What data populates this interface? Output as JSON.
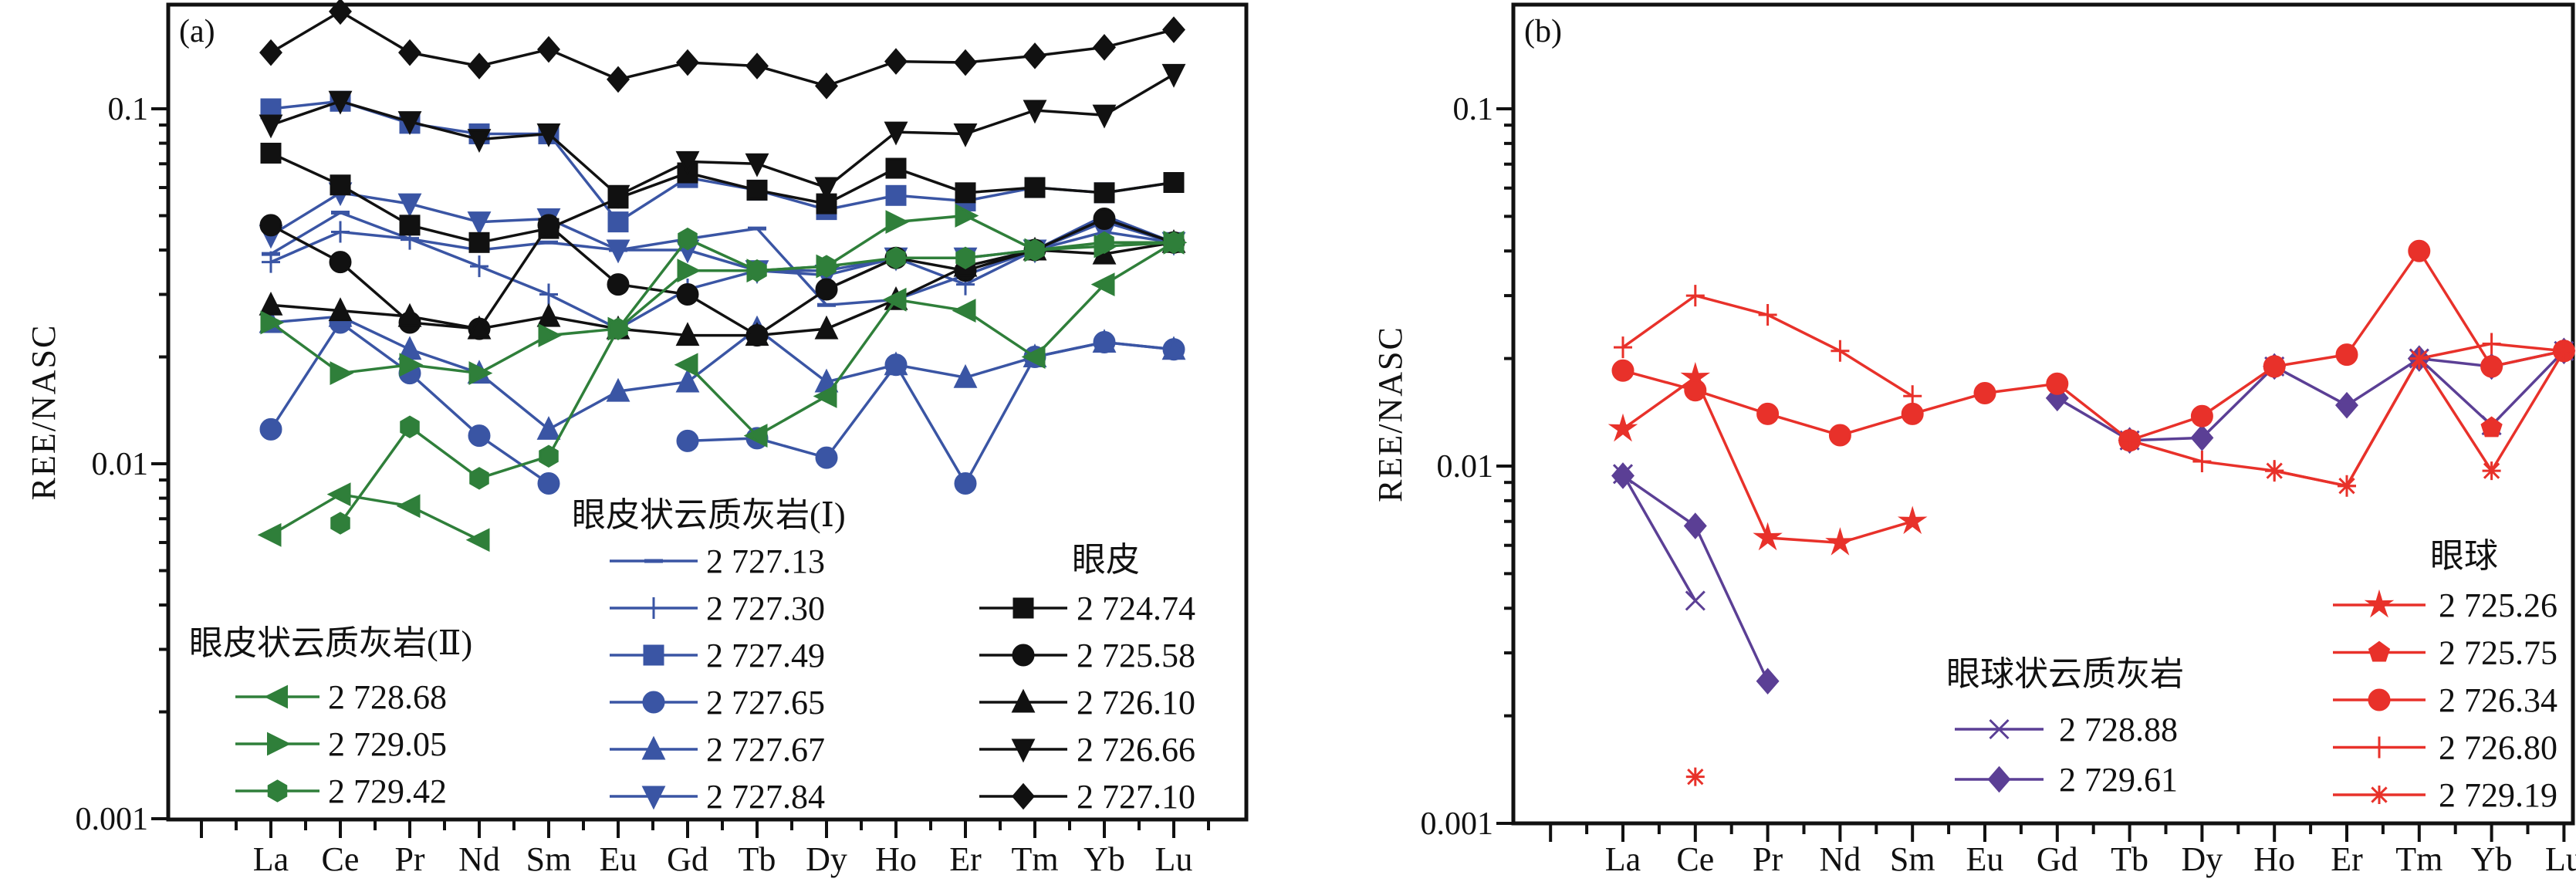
{
  "chart_data": [
    {
      "type": "line",
      "panel_label": "(a)",
      "ylabel": "REE/NASC",
      "yscale": "log",
      "ylim": [
        0.001,
        0.2
      ],
      "ytick_labels": [
        "0.1",
        "0.01",
        "0.001"
      ],
      "ytick_values": [
        0.1,
        0.01,
        0.001
      ],
      "categories": [
        "La",
        "Ce",
        "Pr",
        "Nd",
        "Sm",
        "Eu",
        "Gd",
        "Tb",
        "Dy",
        "Ho",
        "Er",
        "Tm",
        "Yb",
        "Lu"
      ],
      "grid": false,
      "legend_groups": [
        {
          "title": "眼皮状云质灰岩(Ⅰ)",
          "series": [
            {
              "name": "2 727.13",
              "marker": "dash",
              "color": "#3a55a4",
              "values": [
                0.039,
                0.051,
                0.043,
                0.04,
                0.042,
                0.04,
                0.043,
                0.046,
                0.028,
                0.029,
                0.034,
                0.04,
                0.05,
                0.042
              ]
            },
            {
              "name": "2 727.30",
              "marker": "plus",
              "color": "#3a55a4",
              "values": [
                0.037,
                0.045,
                0.043,
                0.036,
                0.03,
                0.024,
                0.031,
                0.035,
                0.035,
                0.038,
                0.032,
                0.04,
                0.048,
                0.042
              ]
            },
            {
              "name": "2 727.49",
              "marker": "square",
              "color": "#3a55a4",
              "values": [
                0.1,
                0.105,
                0.091,
                0.085,
                0.085,
                0.048,
                0.064,
                0.059,
                0.052,
                0.057,
                0.055,
                0.06,
                0.058,
                0.062
              ]
            },
            {
              "name": "2 727.65",
              "marker": "circle",
              "color": "#3a55a4",
              "values": [
                0.0125,
                0.025,
                0.018,
                0.012,
                0.0088,
                null,
                0.0116,
                0.0118,
                0.0104,
                0.019,
                0.0088,
                0.02,
                0.022,
                0.021
              ]
            },
            {
              "name": "2 727.67",
              "marker": "triangle-up",
              "color": "#3a55a4",
              "values": [
                0.025,
                0.026,
                0.021,
                0.018,
                0.0125,
                0.016,
                0.017,
                0.024,
                0.017,
                0.019,
                0.0175,
                0.02,
                0.022,
                0.021
              ]
            },
            {
              "name": "2 727.84",
              "marker": "triangle-down",
              "color": "#3a55a4",
              "values": [
                0.044,
                0.058,
                0.054,
                0.048,
                0.049,
                0.04,
                0.04,
                0.035,
                0.034,
                0.038,
                0.038,
                0.04,
                0.045,
                0.042
              ]
            }
          ]
        },
        {
          "title": "眼皮",
          "series": [
            {
              "name": "2 724.74",
              "marker": "square",
              "color": "#111111",
              "values": [
                0.075,
                0.061,
                0.047,
                0.042,
                0.046,
                0.056,
                0.066,
                0.059,
                0.054,
                0.068,
                0.058,
                0.06,
                0.058,
                0.062
              ]
            },
            {
              "name": "2 725.58",
              "marker": "circle",
              "color": "#111111",
              "values": [
                0.047,
                0.037,
                0.025,
                0.024,
                0.047,
                0.032,
                0.03,
                0.023,
                0.031,
                0.038,
                0.035,
                0.04,
                0.049,
                0.042
              ]
            },
            {
              "name": "2 726.10",
              "marker": "triangle-up",
              "color": "#111111",
              "values": [
                0.028,
                0.027,
                0.026,
                0.024,
                0.026,
                0.024,
                0.023,
                0.023,
                0.024,
                0.029,
                0.036,
                0.04,
                0.039,
                0.042
              ]
            },
            {
              "name": "2 726.66",
              "marker": "triangle-down",
              "color": "#111111",
              "values": [
                0.09,
                0.105,
                0.092,
                0.082,
                0.085,
                0.057,
                0.071,
                0.07,
                0.06,
                0.086,
                0.085,
                0.099,
                0.096,
                0.125
              ]
            },
            {
              "name": "2 727.10",
              "marker": "diamond",
              "color": "#111111",
              "values": [
                0.144,
                0.188,
                0.144,
                0.132,
                0.147,
                0.121,
                0.135,
                0.132,
                0.116,
                0.136,
                0.135,
                0.141,
                0.149,
                0.167
              ]
            }
          ]
        },
        {
          "title": "眼皮状云质灰岩(Ⅱ)",
          "series": [
            {
              "name": "2 728.68",
              "marker": "triangle-left",
              "color": "#2f7f3a",
              "values": [
                0.0063,
                0.0082,
                0.0076,
                0.0061,
                null,
                null,
                0.019,
                0.012,
                0.0155,
                0.029,
                0.027,
                0.02,
                0.032,
                0.042
              ]
            },
            {
              "name": "2 729.05",
              "marker": "triangle-right",
              "color": "#2f7f3a",
              "values": [
                0.025,
                0.018,
                0.019,
                0.018,
                0.023,
                0.024,
                0.035,
                0.035,
                0.036,
                0.048,
                0.05,
                0.04,
                0.041,
                0.042
              ]
            },
            {
              "name": "2 729.42",
              "marker": "hexagon",
              "color": "#2f7f3a",
              "values": [
                null,
                0.0068,
                0.0127,
                0.0091,
                0.0105,
                0.024,
                0.043,
                0.035,
                0.036,
                0.038,
                0.038,
                0.04,
                0.042,
                0.042
              ]
            }
          ]
        }
      ]
    },
    {
      "type": "line",
      "panel_label": "(b)",
      "ylabel": "REE/NASC",
      "yscale": "log",
      "ylim": [
        0.001,
        0.2
      ],
      "ytick_labels": [
        "0.1",
        "0.01",
        "0.001"
      ],
      "ytick_values": [
        0.1,
        0.01,
        0.001
      ],
      "categories": [
        "La",
        "Ce",
        "Pr",
        "Nd",
        "Sm",
        "Eu",
        "Gd",
        "Tb",
        "Dy",
        "Ho",
        "Er",
        "Tm",
        "Yb",
        "Lu"
      ],
      "grid": false,
      "legend_groups": [
        {
          "title": "眼球状云质灰岩",
          "series": [
            {
              "name": "2 728.88",
              "marker": "cross",
              "color": "#5b3f95",
              "values": [
                0.0095,
                0.0042,
                null,
                null,
                null,
                null,
                null,
                0.0118,
                null,
                0.019,
                null,
                0.02,
                0.013,
                0.021
              ]
            },
            {
              "name": "2 729.61",
              "marker": "diamond",
              "color": "#5b3f95",
              "values": [
                0.0094,
                0.0068,
                0.0025,
                null,
                null,
                null,
                0.0155,
                0.0118,
                0.012,
                0.019,
                0.0148,
                0.02,
                0.019,
                0.021
              ]
            }
          ]
        },
        {
          "title": "眼球",
          "series": [
            {
              "name": "2 725.26",
              "marker": "star",
              "color": "#e8312a",
              "values": [
                0.0127,
                0.0177,
                0.0063,
                0.0061,
                0.007,
                null,
                null,
                null,
                null,
                null,
                null,
                null,
                null,
                null
              ]
            },
            {
              "name": "2 725.75",
              "marker": "pentagon",
              "color": "#e8312a",
              "values": [
                null,
                null,
                null,
                null,
                null,
                null,
                null,
                null,
                null,
                null,
                null,
                null,
                0.0128,
                null
              ]
            },
            {
              "name": "2 726.34",
              "marker": "circle",
              "color": "#e8312a",
              "values": [
                0.0185,
                0.0163,
                0.014,
                0.0122,
                0.014,
                0.016,
                0.017,
                0.0118,
                0.0138,
                0.019,
                0.0205,
                0.04,
                0.019,
                0.021
              ]
            },
            {
              "name": "2 726.80",
              "marker": "plus",
              "color": "#e8312a",
              "values": [
                0.0215,
                0.03,
                0.0265,
                0.021,
                0.0157,
                null,
                null,
                0.0118,
                0.0103,
                0.0097,
                0.0088,
                0.02,
                0.022,
                0.021
              ]
            },
            {
              "name": "2 729.19",
              "marker": "asterisk",
              "color": "#e8312a",
              "values": [
                null,
                0.00135,
                null,
                null,
                null,
                null,
                null,
                null,
                null,
                0.0097,
                0.0088,
                0.02,
                0.0097,
                0.021
              ]
            }
          ]
        }
      ]
    }
  ]
}
